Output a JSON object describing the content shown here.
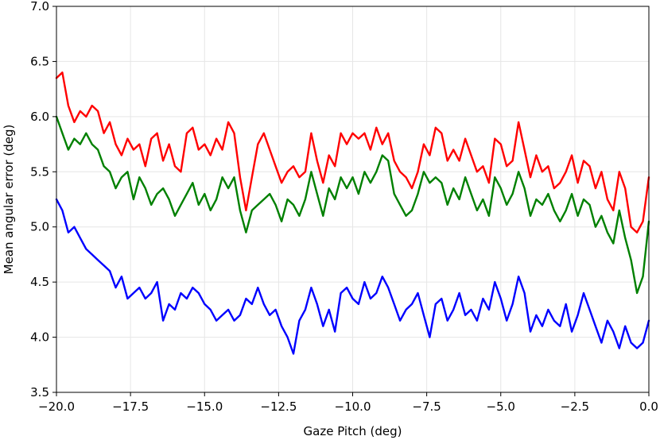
{
  "chart_data": {
    "type": "line",
    "xlabel": "Gaze Pitch (deg)",
    "ylabel": "Mean angular error (deg)",
    "xlim": [
      -20.0,
      0.0
    ],
    "ylim": [
      3.5,
      7.0
    ],
    "xticks": [
      -20.0,
      -17.5,
      -15.0,
      -12.5,
      -10.0,
      -7.5,
      -5.0,
      -2.5,
      0.0
    ],
    "xtick_labels": [
      "−20.0",
      "−17.5",
      "−15.0",
      "−12.5",
      "−10.0",
      "−7.5",
      "−5.0",
      "−2.5",
      "0.0"
    ],
    "yticks": [
      3.5,
      4.0,
      4.5,
      5.0,
      5.5,
      6.0,
      6.5,
      7.0
    ],
    "ytick_labels": [
      "3.5",
      "4.0",
      "4.5",
      "5.0",
      "5.5",
      "6.0",
      "6.5",
      "7.0"
    ],
    "grid": true,
    "legend": "none",
    "series": [
      {
        "color": "#ff0000",
        "x": [
          -20.0,
          -19.8,
          -19.6,
          -19.4,
          -19.2,
          -19.0,
          -18.8,
          -18.6,
          -18.4,
          -18.2,
          -18.0,
          -17.8,
          -17.6,
          -17.4,
          -17.2,
          -17.0,
          -16.8,
          -16.6,
          -16.4,
          -16.2,
          -16.0,
          -15.8,
          -15.6,
          -15.4,
          -15.2,
          -15.0,
          -14.8,
          -14.6,
          -14.4,
          -14.2,
          -14.0,
          -13.8,
          -13.6,
          -13.4,
          -13.2,
          -13.0,
          -12.8,
          -12.6,
          -12.4,
          -12.2,
          -12.0,
          -11.8,
          -11.6,
          -11.4,
          -11.2,
          -11.0,
          -10.8,
          -10.6,
          -10.4,
          -10.2,
          -10.0,
          -9.8,
          -9.6,
          -9.4,
          -9.2,
          -9.0,
          -8.8,
          -8.6,
          -8.4,
          -8.2,
          -8.0,
          -7.8,
          -7.6,
          -7.4,
          -7.2,
          -7.0,
          -6.8,
          -6.6,
          -6.4,
          -6.2,
          -6.0,
          -5.8,
          -5.6,
          -5.4,
          -5.2,
          -5.0,
          -4.8,
          -4.6,
          -4.4,
          -4.2,
          -4.0,
          -3.8,
          -3.6,
          -3.4,
          -3.2,
          -3.0,
          -2.8,
          -2.6,
          -2.4,
          -2.2,
          -2.0,
          -1.8,
          -1.6,
          -1.4,
          -1.2,
          -1.0,
          -0.8,
          -0.6,
          -0.4,
          -0.2,
          0.0
        ],
        "y": [
          6.35,
          6.4,
          6.1,
          5.95,
          6.05,
          6.0,
          6.1,
          6.05,
          5.85,
          5.95,
          5.75,
          5.65,
          5.8,
          5.7,
          5.75,
          5.55,
          5.8,
          5.85,
          5.6,
          5.75,
          5.55,
          5.5,
          5.85,
          5.9,
          5.7,
          5.75,
          5.65,
          5.8,
          5.7,
          5.95,
          5.85,
          5.45,
          5.15,
          5.45,
          5.75,
          5.85,
          5.7,
          5.55,
          5.4,
          5.5,
          5.55,
          5.45,
          5.5,
          5.85,
          5.6,
          5.4,
          5.65,
          5.55,
          5.85,
          5.75,
          5.85,
          5.8,
          5.85,
          5.7,
          5.9,
          5.75,
          5.85,
          5.6,
          5.5,
          5.45,
          5.35,
          5.5,
          5.75,
          5.65,
          5.9,
          5.85,
          5.6,
          5.7,
          5.6,
          5.8,
          5.65,
          5.5,
          5.55,
          5.4,
          5.8,
          5.75,
          5.55,
          5.6,
          5.95,
          5.7,
          5.45,
          5.65,
          5.5,
          5.55,
          5.35,
          5.4,
          5.5,
          5.65,
          5.4,
          5.6,
          5.55,
          5.35,
          5.5,
          5.25,
          5.15,
          5.5,
          5.35,
          5.0,
          4.95,
          5.05,
          5.45
        ]
      },
      {
        "color": "#008000",
        "x": [
          -20.0,
          -19.8,
          -19.6,
          -19.4,
          -19.2,
          -19.0,
          -18.8,
          -18.6,
          -18.4,
          -18.2,
          -18.0,
          -17.8,
          -17.6,
          -17.4,
          -17.2,
          -17.0,
          -16.8,
          -16.6,
          -16.4,
          -16.2,
          -16.0,
          -15.8,
          -15.6,
          -15.4,
          -15.2,
          -15.0,
          -14.8,
          -14.6,
          -14.4,
          -14.2,
          -14.0,
          -13.8,
          -13.6,
          -13.4,
          -13.2,
          -13.0,
          -12.8,
          -12.6,
          -12.4,
          -12.2,
          -12.0,
          -11.8,
          -11.6,
          -11.4,
          -11.2,
          -11.0,
          -10.8,
          -10.6,
          -10.4,
          -10.2,
          -10.0,
          -9.8,
          -9.6,
          -9.4,
          -9.2,
          -9.0,
          -8.8,
          -8.6,
          -8.4,
          -8.2,
          -8.0,
          -7.8,
          -7.6,
          -7.4,
          -7.2,
          -7.0,
          -6.8,
          -6.6,
          -6.4,
          -6.2,
          -6.0,
          -5.8,
          -5.6,
          -5.4,
          -5.2,
          -5.0,
          -4.8,
          -4.6,
          -4.4,
          -4.2,
          -4.0,
          -3.8,
          -3.6,
          -3.4,
          -3.2,
          -3.0,
          -2.8,
          -2.6,
          -2.4,
          -2.2,
          -2.0,
          -1.8,
          -1.6,
          -1.4,
          -1.2,
          -1.0,
          -0.8,
          -0.6,
          -0.4,
          -0.2,
          0.0
        ],
        "y": [
          6.0,
          5.85,
          5.7,
          5.8,
          5.75,
          5.85,
          5.75,
          5.7,
          5.55,
          5.5,
          5.35,
          5.45,
          5.5,
          5.25,
          5.45,
          5.35,
          5.2,
          5.3,
          5.35,
          5.25,
          5.1,
          5.2,
          5.3,
          5.4,
          5.2,
          5.3,
          5.15,
          5.25,
          5.45,
          5.35,
          5.45,
          5.15,
          4.95,
          5.15,
          5.2,
          5.25,
          5.3,
          5.2,
          5.05,
          5.25,
          5.2,
          5.1,
          5.25,
          5.5,
          5.3,
          5.1,
          5.35,
          5.25,
          5.45,
          5.35,
          5.45,
          5.3,
          5.5,
          5.4,
          5.5,
          5.65,
          5.6,
          5.3,
          5.2,
          5.1,
          5.15,
          5.3,
          5.5,
          5.4,
          5.45,
          5.4,
          5.2,
          5.35,
          5.25,
          5.45,
          5.3,
          5.15,
          5.25,
          5.1,
          5.45,
          5.35,
          5.2,
          5.3,
          5.5,
          5.35,
          5.1,
          5.25,
          5.2,
          5.3,
          5.15,
          5.05,
          5.15,
          5.3,
          5.1,
          5.25,
          5.2,
          5.0,
          5.1,
          4.95,
          4.85,
          5.15,
          4.9,
          4.7,
          4.4,
          4.55,
          5.05
        ]
      },
      {
        "color": "#0000ff",
        "x": [
          -20.0,
          -19.8,
          -19.6,
          -19.4,
          -19.2,
          -19.0,
          -18.8,
          -18.6,
          -18.4,
          -18.2,
          -18.0,
          -17.8,
          -17.6,
          -17.4,
          -17.2,
          -17.0,
          -16.8,
          -16.6,
          -16.4,
          -16.2,
          -16.0,
          -15.8,
          -15.6,
          -15.4,
          -15.2,
          -15.0,
          -14.8,
          -14.6,
          -14.4,
          -14.2,
          -14.0,
          -13.8,
          -13.6,
          -13.4,
          -13.2,
          -13.0,
          -12.8,
          -12.6,
          -12.4,
          -12.2,
          -12.0,
          -11.8,
          -11.6,
          -11.4,
          -11.2,
          -11.0,
          -10.8,
          -10.6,
          -10.4,
          -10.2,
          -10.0,
          -9.8,
          -9.6,
          -9.4,
          -9.2,
          -9.0,
          -8.8,
          -8.6,
          -8.4,
          -8.2,
          -8.0,
          -7.8,
          -7.6,
          -7.4,
          -7.2,
          -7.0,
          -6.8,
          -6.6,
          -6.4,
          -6.2,
          -6.0,
          -5.8,
          -5.6,
          -5.4,
          -5.2,
          -5.0,
          -4.8,
          -4.6,
          -4.4,
          -4.2,
          -4.0,
          -3.8,
          -3.6,
          -3.4,
          -3.2,
          -3.0,
          -2.8,
          -2.6,
          -2.4,
          -2.2,
          -2.0,
          -1.8,
          -1.6,
          -1.4,
          -1.2,
          -1.0,
          -0.8,
          -0.6,
          -0.4,
          -0.2,
          0.0
        ],
        "y": [
          5.25,
          5.15,
          4.95,
          5.0,
          4.9,
          4.8,
          4.75,
          4.7,
          4.65,
          4.6,
          4.45,
          4.55,
          4.35,
          4.4,
          4.45,
          4.35,
          4.4,
          4.5,
          4.15,
          4.3,
          4.25,
          4.4,
          4.35,
          4.45,
          4.4,
          4.3,
          4.25,
          4.15,
          4.2,
          4.25,
          4.15,
          4.2,
          4.35,
          4.3,
          4.45,
          4.3,
          4.2,
          4.25,
          4.1,
          4.0,
          3.85,
          4.15,
          4.25,
          4.45,
          4.3,
          4.1,
          4.25,
          4.05,
          4.4,
          4.45,
          4.35,
          4.3,
          4.5,
          4.35,
          4.4,
          4.55,
          4.45,
          4.3,
          4.15,
          4.25,
          4.3,
          4.4,
          4.2,
          4.0,
          4.3,
          4.35,
          4.15,
          4.25,
          4.4,
          4.2,
          4.25,
          4.15,
          4.35,
          4.25,
          4.5,
          4.35,
          4.15,
          4.3,
          4.55,
          4.4,
          4.05,
          4.2,
          4.1,
          4.25,
          4.15,
          4.1,
          4.3,
          4.05,
          4.2,
          4.4,
          4.25,
          4.1,
          3.95,
          4.15,
          4.05,
          3.9,
          4.1,
          3.95,
          3.9,
          3.95,
          4.15
        ]
      }
    ]
  }
}
